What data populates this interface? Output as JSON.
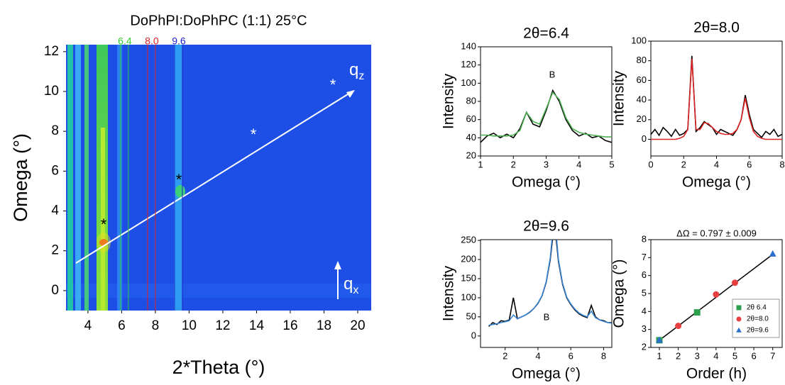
{
  "chart_data": [
    {
      "type": "heatmap",
      "title": "DoPhPI:DoPhPC (1:1) 25°C",
      "x_label": "2*Theta (°)",
      "y_label": "Omega (°)",
      "xlim": [
        2.7,
        20.8
      ],
      "ylim": [
        -1,
        12.35
      ],
      "xticks": [
        4,
        6,
        8,
        10,
        12,
        14,
        16,
        18,
        20
      ],
      "yticks": [
        0,
        2,
        4,
        6,
        8,
        10,
        12
      ],
      "marker_lines": [
        6.4,
        {
          "value": 8,
          "label": "8.0"
        },
        9.6
      ],
      "marker_colors": [
        "#33cc33",
        "#dd2222",
        "#2222cc"
      ],
      "annotations": {
        "stars": [
          "*",
          "*",
          "*",
          "*"
        ],
        "q_z": [
          "q",
          "z"
        ],
        "q_x": [
          "q",
          "x"
        ]
      }
    },
    {
      "type": "line",
      "title": "2θ=6.4",
      "x_label": "Omega (°)",
      "y_label": "Intensity",
      "annotation": "B",
      "xlim": [
        1,
        5
      ],
      "ylim": [
        20,
        140
      ],
      "xticks": [
        1,
        2,
        3,
        4,
        5
      ],
      "yticks": [
        20,
        40,
        60,
        80,
        100,
        120,
        140
      ],
      "x": [
        1,
        1.2,
        1.4,
        1.6,
        1.8,
        2,
        2.2,
        2.4,
        2.6,
        2.8,
        3,
        3.2,
        3.4,
        3.6,
        3.8,
        4,
        4.2,
        4.4,
        4.6,
        4.8,
        5
      ],
      "series": [
        {
          "color": "#000000",
          "values": [
            35,
            42,
            45,
            40,
            44,
            40,
            50,
            68,
            55,
            52,
            70,
            92,
            80,
            60,
            48,
            42,
            45,
            40,
            42,
            37,
            35
          ]
        },
        {
          "color": "#4caf50",
          "values": [
            43,
            43,
            42,
            42,
            42,
            43,
            48,
            68,
            58,
            55,
            72,
            90,
            82,
            62,
            50,
            46,
            44,
            43,
            42,
            41,
            41
          ]
        }
      ]
    },
    {
      "type": "line",
      "title": "2θ=8.0",
      "x_label": "Omega (°)",
      "y_label": "Intensity",
      "xlim": [
        0,
        8
      ],
      "ylim": [
        -17,
        100
      ],
      "xticks": [
        0,
        2,
        4,
        6,
        8
      ],
      "yticks": [
        0,
        20,
        40,
        60,
        80,
        100
      ],
      "x": [
        0,
        0.25,
        0.5,
        0.75,
        1,
        1.25,
        1.5,
        1.75,
        2,
        2.25,
        2.5,
        2.75,
        3,
        3.25,
        3.5,
        3.75,
        4,
        4.25,
        4.5,
        4.75,
        5,
        5.25,
        5.5,
        5.75,
        6,
        6.25,
        6.5,
        6.75,
        7,
        7.25,
        7.5,
        7.75,
        8
      ],
      "series": [
        {
          "color": "#000000",
          "values": [
            5,
            10,
            4,
            12,
            8,
            3,
            10,
            4,
            6,
            10,
            85,
            8,
            12,
            18,
            15,
            12,
            5,
            10,
            8,
            6,
            4,
            10,
            20,
            45,
            25,
            10,
            6,
            2,
            8,
            5,
            10,
            3,
            5
          ]
        },
        {
          "color": "#dd2222",
          "values": [
            0,
            0,
            0,
            0,
            0,
            0,
            0,
            1,
            3,
            10,
            82,
            10,
            10,
            17,
            16,
            12,
            8,
            6,
            5,
            5,
            6,
            10,
            20,
            42,
            22,
            8,
            3,
            1,
            0,
            0,
            0,
            0,
            0
          ]
        }
      ]
    },
    {
      "type": "line",
      "title": "2θ=9.6",
      "x_label": "Omega (°)",
      "y_label": "Intensity",
      "annotation": "B",
      "xlim": [
        0.5,
        8.5
      ],
      "ylim": [
        -30,
        252
      ],
      "xticks": [
        2,
        4,
        6,
        8
      ],
      "yticks": [
        0,
        50,
        100,
        150,
        200,
        250
      ],
      "x": [
        1,
        1.25,
        1.5,
        1.75,
        2,
        2.25,
        2.5,
        2.75,
        3,
        3.25,
        3.5,
        3.75,
        4,
        4.25,
        4.5,
        4.75,
        5,
        5.25,
        5.5,
        5.75,
        6,
        6.25,
        6.5,
        6.75,
        7,
        7.25,
        7.5,
        7.75,
        8,
        8.25,
        8.5,
        8.75,
        9
      ],
      "series": [
        {
          "color": "#000000",
          "values": [
            25,
            35,
            30,
            40,
            38,
            42,
            100,
            45,
            50,
            55,
            62,
            72,
            85,
            105,
            140,
            200,
            300,
            195,
            135,
            100,
            82,
            68,
            58,
            52,
            48,
            80,
            50,
            42,
            40,
            35,
            35,
            30,
            28
          ]
        },
        {
          "color": "#3a86d6",
          "values": [
            28,
            30,
            32,
            35,
            37,
            40,
            55,
            45,
            50,
            55,
            63,
            72,
            86,
            106,
            142,
            205,
            320,
            200,
            138,
            102,
            84,
            70,
            60,
            54,
            50,
            65,
            48,
            42,
            38,
            35,
            33,
            31,
            30
          ]
        }
      ]
    },
    {
      "type": "scatter",
      "title": "ΔΩ = 0.797 ± 0.009",
      "x_label": "Order (h)",
      "y_label": "Omega (°)",
      "xlim": [
        0.55,
        7.5
      ],
      "ylim": [
        2,
        8
      ],
      "xticks": [
        1,
        2,
        3,
        4,
        5,
        6,
        7
      ],
      "yticks": [
        2,
        3,
        4,
        5,
        6,
        7,
        8
      ],
      "legend": "lower right",
      "series": [
        {
          "color": "#000000",
          "mode": "line",
          "x": [
            1,
            7
          ],
          "values": [
            2.4,
            7.18
          ]
        },
        {
          "name": "2θ  6.4",
          "color": "#2e9e4f",
          "marker": "square",
          "x": [
            1,
            3
          ],
          "values": [
            2.4,
            3.95
          ]
        },
        {
          "name": "2θ=8.0",
          "color": "#e84040",
          "marker": "circle",
          "x": [
            2,
            4,
            5
          ],
          "values": [
            3.2,
            4.95,
            5.6
          ]
        },
        {
          "name": "2θ=9.6",
          "color": "#2a6fc9",
          "marker": "triangle",
          "x": [
            1,
            7
          ],
          "values": [
            2.4,
            7.2
          ]
        }
      ]
    }
  ]
}
